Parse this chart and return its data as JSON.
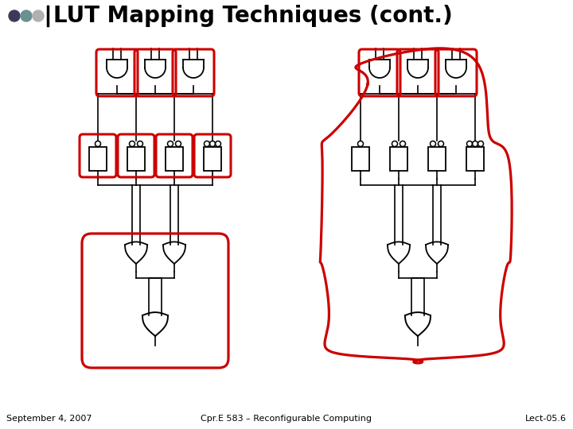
{
  "title": "LUT Mapping Techniques (cont.)",
  "footer_left": "September 4, 2007",
  "footer_center": "Cpr.E 583 – Reconfigurable Computing",
  "footer_right": "Lect-05.6",
  "bg_color": "#ffffff",
  "title_color": "#000000",
  "footer_color": "#000000",
  "dot_colors": [
    "#3a3a5a",
    "#6a9090",
    "#b0b0b0"
  ],
  "bar_color": "#000000",
  "gate_color": "#000000",
  "red_color": "#cc0000",
  "title_fontsize": 20,
  "footer_fontsize": 8
}
